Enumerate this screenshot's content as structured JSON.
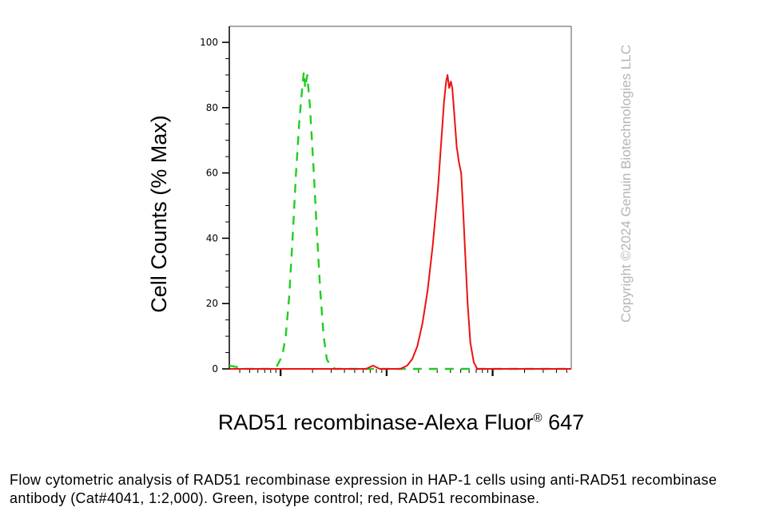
{
  "chart_data": {
    "type": "line",
    "xlabel": "RAD51 recombinase-Alexa Fluor",
    "xlabel_sup": "®",
    "xlabel_suffix": " 647",
    "ylabel": "Cell Counts (% Max)",
    "ylim": [
      0,
      100
    ],
    "xscale": "log",
    "y_ticks": [
      "0",
      "20",
      "40",
      "60",
      "80",
      "100"
    ],
    "grid": false,
    "series": [
      {
        "color": "#22cc22",
        "style": "dashed",
        "points": [
          [
            0.0,
            1
          ],
          [
            0.05,
            0
          ],
          [
            0.12,
            0
          ],
          [
            0.14,
            1
          ],
          [
            0.155,
            4
          ],
          [
            0.165,
            10
          ],
          [
            0.175,
            22
          ],
          [
            0.185,
            40
          ],
          [
            0.195,
            60
          ],
          [
            0.205,
            76
          ],
          [
            0.213,
            86
          ],
          [
            0.218,
            91
          ],
          [
            0.222,
            86
          ],
          [
            0.228,
            90
          ],
          [
            0.236,
            80
          ],
          [
            0.246,
            62
          ],
          [
            0.256,
            42
          ],
          [
            0.266,
            24
          ],
          [
            0.276,
            10
          ],
          [
            0.285,
            3
          ],
          [
            0.295,
            1
          ],
          [
            0.31,
            0
          ],
          [
            1.0,
            0
          ]
        ]
      },
      {
        "color": "#ee1111",
        "style": "solid",
        "points": [
          [
            0.0,
            0
          ],
          [
            0.38,
            0
          ],
          [
            0.4,
            0
          ],
          [
            0.42,
            1
          ],
          [
            0.44,
            0
          ],
          [
            0.5,
            0
          ],
          [
            0.52,
            1
          ],
          [
            0.535,
            3
          ],
          [
            0.55,
            7
          ],
          [
            0.565,
            14
          ],
          [
            0.58,
            24
          ],
          [
            0.595,
            38
          ],
          [
            0.61,
            55
          ],
          [
            0.62,
            70
          ],
          [
            0.628,
            82
          ],
          [
            0.634,
            88
          ],
          [
            0.638,
            90
          ],
          [
            0.643,
            86
          ],
          [
            0.648,
            88
          ],
          [
            0.652,
            86
          ],
          [
            0.658,
            78
          ],
          [
            0.665,
            68
          ],
          [
            0.672,
            63
          ],
          [
            0.678,
            60
          ],
          [
            0.684,
            48
          ],
          [
            0.69,
            35
          ],
          [
            0.697,
            20
          ],
          [
            0.705,
            8
          ],
          [
            0.715,
            2
          ],
          [
            0.725,
            0
          ],
          [
            1.0,
            0
          ]
        ]
      }
    ]
  },
  "watermark": "Copyright ©2024 Genuin Biotechnologies LLC",
  "caption": "Flow cytometric analysis of RAD51 recombinase expression in HAP-1 cells using anti-RAD51 recombinase antibody (Cat#4041, 1:2,000). Green, isotype control; red, RAD51 recombinase."
}
